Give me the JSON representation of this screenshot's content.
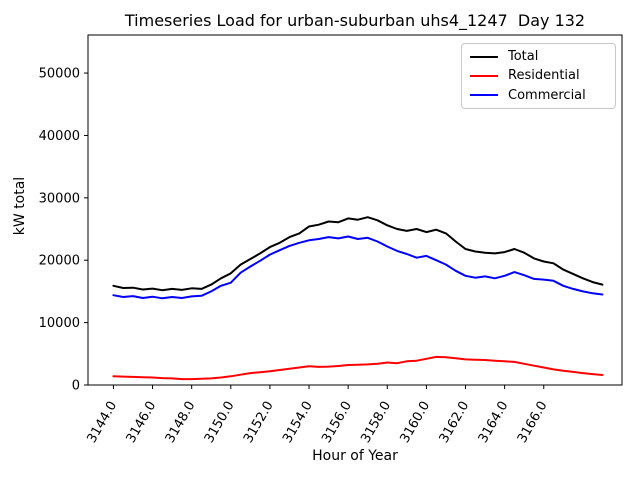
{
  "chart": {
    "title": "Timeseries Load for urban-suburban uhs4_1247  Day 132"
  },
  "legend": {
    "items": [
      {
        "label": "Total",
        "color": "#000000"
      },
      {
        "label": "Residential",
        "color": "#ff0000"
      },
      {
        "label": "Commercial",
        "color": "#0000ff"
      }
    ]
  },
  "chart_data": {
    "type": "line",
    "title": "Timeseries Load for urban-suburban uhs4_1247  Day 132",
    "xlabel": "Hour of Year",
    "ylabel": "kW total",
    "xlim": [
      3142.7,
      3170.0
    ],
    "ylim": [
      0,
      56100
    ],
    "grid": false,
    "legend_position": "upper right",
    "xticks": {
      "values": [
        3144,
        3146,
        3148,
        3150,
        3152,
        3154,
        3156,
        3158,
        3160,
        3162,
        3164,
        3166
      ],
      "labels": [
        "3144.0",
        "3146.0",
        "3148.0",
        "3150.0",
        "3152.0",
        "3154.0",
        "3156.0",
        "3158.0",
        "3160.0",
        "3162.0",
        "3164.0",
        "3166.0"
      ],
      "rotation_deg": 60
    },
    "yticks": {
      "values": [
        0,
        10000,
        20000,
        30000,
        40000,
        50000
      ],
      "labels": [
        "0",
        "10000",
        "20000",
        "30000",
        "40000",
        "50000"
      ]
    },
    "x": [
      3144.0,
      3144.5,
      3145.0,
      3145.5,
      3146.0,
      3146.5,
      3147.0,
      3147.5,
      3148.0,
      3148.5,
      3149.0,
      3149.5,
      3150.0,
      3150.5,
      3151.0,
      3151.5,
      3152.0,
      3152.5,
      3153.0,
      3153.5,
      3154.0,
      3154.5,
      3155.0,
      3155.5,
      3156.0,
      3156.5,
      3157.0,
      3157.5,
      3158.0,
      3158.5,
      3159.0,
      3159.5,
      3160.0,
      3160.5,
      3161.0,
      3161.5,
      3162.0,
      3162.5,
      3163.0,
      3163.5,
      3164.0,
      3164.5,
      3165.0,
      3165.5,
      3166.0,
      3166.5,
      3167.0,
      3167.5,
      3168.0,
      3168.5,
      3169.0
    ],
    "series": [
      {
        "name": "Total",
        "color": "#000000",
        "values": [
          15900,
          15550,
          15600,
          15300,
          15450,
          15200,
          15400,
          15250,
          15500,
          15400,
          16100,
          17100,
          17900,
          19300,
          20200,
          21100,
          22100,
          22800,
          23700,
          24300,
          25400,
          25700,
          26200,
          26100,
          26700,
          26500,
          26900,
          26400,
          25600,
          25000,
          24700,
          25000,
          24500,
          24900,
          24300,
          23000,
          21800,
          21400,
          21200,
          21100,
          21300,
          21800,
          21200,
          20300,
          19800,
          19500,
          18500,
          17800,
          17100,
          16500,
          16100
        ]
      },
      {
        "name": "Residential",
        "color": "#ff0000",
        "values": [
          1400,
          1350,
          1300,
          1250,
          1200,
          1100,
          1050,
          950,
          950,
          1000,
          1050,
          1200,
          1400,
          1650,
          1900,
          2050,
          2200,
          2400,
          2600,
          2800,
          3000,
          2900,
          2950,
          3050,
          3200,
          3250,
          3300,
          3400,
          3600,
          3500,
          3800,
          3900,
          4200,
          4500,
          4450,
          4300,
          4100,
          4050,
          4000,
          3900,
          3800,
          3700,
          3400,
          3100,
          2800,
          2500,
          2300,
          2100,
          1900,
          1750,
          1600
        ]
      },
      {
        "name": "Commercial",
        "color": "#0000ff",
        "values": [
          14400,
          14100,
          14250,
          13950,
          14150,
          13900,
          14100,
          13950,
          14200,
          14300,
          15000,
          15900,
          16400,
          18000,
          19000,
          19900,
          20900,
          21600,
          22300,
          22800,
          23200,
          23400,
          23700,
          23500,
          23800,
          23400,
          23600,
          23000,
          22200,
          21500,
          21000,
          20400,
          20700,
          20000,
          19300,
          18300,
          17500,
          17200,
          17400,
          17100,
          17500,
          18100,
          17600,
          17000,
          16900,
          16700,
          15900,
          15400,
          15000,
          14700,
          14500
        ]
      }
    ]
  }
}
